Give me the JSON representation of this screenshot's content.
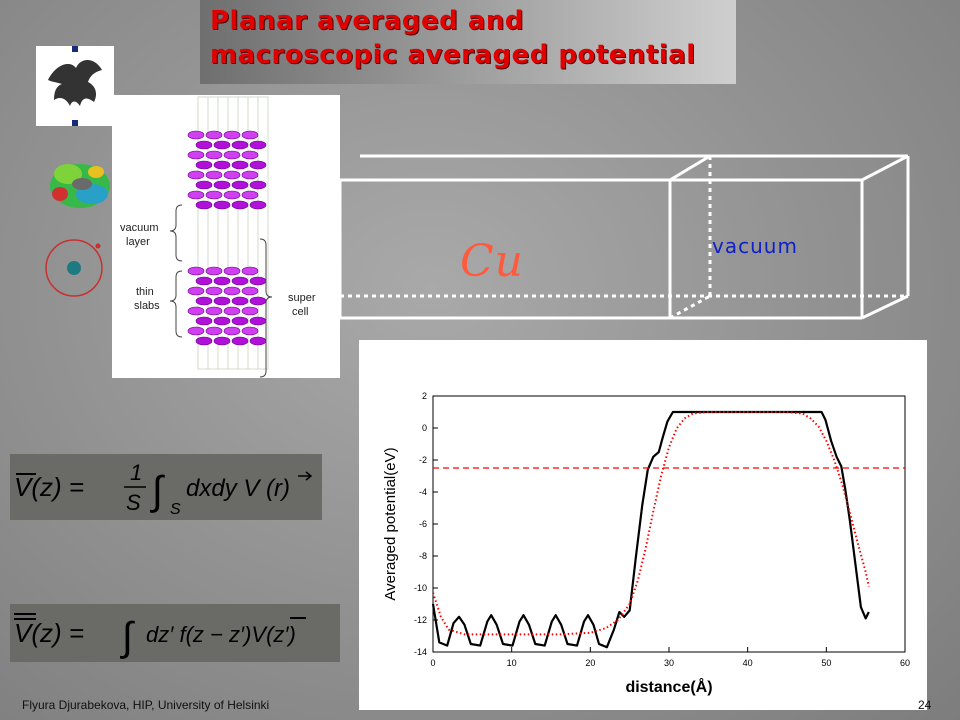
{
  "title": {
    "line1": "Planar averaged and",
    "line2": "macroscopic averaged potential"
  },
  "structure_figure": {
    "vacuum_label_1": "vacuum",
    "vacuum_label_2": "layer",
    "slabs_label_1": "thin",
    "slabs_label_2": "slabs",
    "cell_label_1": "super",
    "cell_label_2": "cell"
  },
  "cell_diagram": {
    "metal_label": "Cu",
    "vacuum_label": "vacuum"
  },
  "formulas": {
    "planar_average": {
      "lhs": "V(z) =",
      "prefactor_num": "1",
      "prefactor_den": "S",
      "integral": "∫",
      "domain": "S",
      "rhs": "dxdy  V (r)"
    },
    "macroscopic_average": {
      "lhs": "V(z) =",
      "integral": "∫",
      "rhs": "dz′  f(z − z′)V(z′)"
    }
  },
  "chart_data": {
    "type": "line",
    "xlabel": "distance(Å)",
    "ylabel": "Averaged potential(eV)",
    "xlim": [
      0,
      60
    ],
    "ylim": [
      -14,
      2
    ],
    "xticks": [
      0,
      10,
      20,
      30,
      40,
      50,
      60
    ],
    "yticks": [
      2,
      0,
      -2,
      -4,
      -6,
      -8,
      -10,
      -12,
      -14
    ],
    "series": [
      {
        "style": "solid",
        "color": "#000000",
        "points": [
          [
            0,
            -11.0
          ],
          [
            0.8,
            -13.4
          ],
          [
            1.8,
            -13.6
          ],
          [
            2.6,
            -12.2
          ],
          [
            3.3,
            -11.8
          ],
          [
            4.0,
            -12.3
          ],
          [
            4.8,
            -13.5
          ],
          [
            6.0,
            -13.6
          ],
          [
            6.9,
            -12.1
          ],
          [
            7.4,
            -11.7
          ],
          [
            8.1,
            -12.3
          ],
          [
            8.9,
            -13.5
          ],
          [
            10.1,
            -13.6
          ],
          [
            11.0,
            -12.1
          ],
          [
            11.5,
            -11.7
          ],
          [
            12.2,
            -12.3
          ],
          [
            13.0,
            -13.5
          ],
          [
            14.2,
            -13.6
          ],
          [
            15.1,
            -12.1
          ],
          [
            15.6,
            -11.7
          ],
          [
            16.3,
            -12.3
          ],
          [
            17.1,
            -13.5
          ],
          [
            18.3,
            -13.6
          ],
          [
            19.2,
            -12.1
          ],
          [
            19.7,
            -11.7
          ],
          [
            20.4,
            -12.3
          ],
          [
            21.1,
            -13.5
          ],
          [
            22.1,
            -13.7
          ],
          [
            23.0,
            -12.6
          ],
          [
            23.7,
            -11.5
          ],
          [
            24.3,
            -11.8
          ],
          [
            25.0,
            -11.4
          ],
          [
            25.8,
            -8.0
          ],
          [
            26.6,
            -4.8
          ],
          [
            27.3,
            -2.6
          ],
          [
            28.0,
            -1.8
          ],
          [
            28.7,
            -1.5
          ],
          [
            29.2,
            -0.6
          ],
          [
            29.8,
            0.4
          ],
          [
            30.5,
            1.0
          ],
          [
            35,
            1.0
          ],
          [
            40,
            1.0
          ],
          [
            45,
            1.0
          ],
          [
            49.4,
            1.0
          ],
          [
            49.9,
            0.5
          ],
          [
            50.6,
            -0.8
          ],
          [
            51.3,
            -1.8
          ],
          [
            51.9,
            -2.4
          ],
          [
            52.4,
            -3.8
          ],
          [
            53.0,
            -5.8
          ],
          [
            53.7,
            -8.5
          ],
          [
            54.4,
            -11.2
          ],
          [
            55.0,
            -11.9
          ],
          [
            55.4,
            -11.5
          ]
        ]
      },
      {
        "style": "dotted",
        "color": "#ff0000",
        "points": [
          [
            0,
            -10.3
          ],
          [
            1,
            -11.8
          ],
          [
            2,
            -12.6
          ],
          [
            4,
            -12.9
          ],
          [
            8,
            -12.9
          ],
          [
            12,
            -12.9
          ],
          [
            16,
            -12.9
          ],
          [
            20,
            -12.8
          ],
          [
            22,
            -12.5
          ],
          [
            23.5,
            -12.0
          ],
          [
            25,
            -11.0
          ],
          [
            26,
            -9.6
          ],
          [
            27,
            -7.6
          ],
          [
            28,
            -5.2
          ],
          [
            29,
            -3.0
          ],
          [
            30,
            -1.2
          ],
          [
            31,
            0.0
          ],
          [
            32,
            0.6
          ],
          [
            33,
            0.9
          ],
          [
            35,
            1.0
          ],
          [
            40,
            1.0
          ],
          [
            45,
            1.0
          ],
          [
            47,
            0.9
          ],
          [
            48,
            0.6
          ],
          [
            49,
            0.1
          ],
          [
            50,
            -0.8
          ],
          [
            51,
            -2.0
          ],
          [
            52,
            -3.5
          ],
          [
            53,
            -5.3
          ],
          [
            54,
            -7.2
          ],
          [
            55,
            -9.0
          ],
          [
            55.4,
            -9.9
          ]
        ]
      },
      {
        "style": "dashed",
        "color": "#ff0000",
        "points": [
          [
            0,
            -2.5
          ],
          [
            60,
            -2.5
          ]
        ]
      }
    ]
  },
  "footer": {
    "author": "Flyura Djurabekova, HIP, University of Helsinki",
    "page": "24"
  }
}
